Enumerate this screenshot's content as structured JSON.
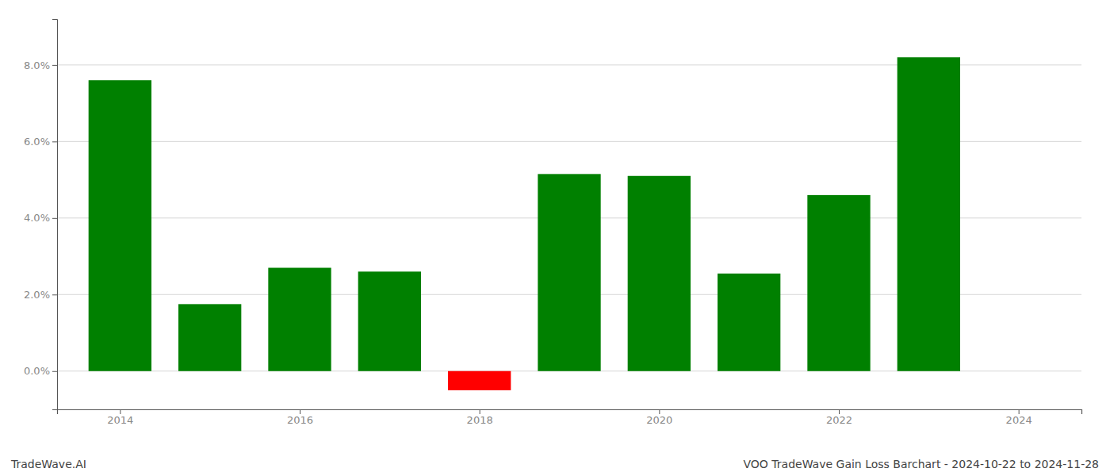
{
  "chart_data": {
    "type": "bar",
    "title": "VOO TradeWave Gain Loss Barchart - 2024-10-22 to 2024-11-28",
    "annotations": [
      "TradeWave.AI"
    ],
    "x": [
      2014,
      2015,
      2016,
      2017,
      2018,
      2019,
      2020,
      2021,
      2022,
      2023
    ],
    "values": [
      0.076,
      0.0175,
      0.027,
      0.026,
      -0.005,
      0.0515,
      0.051,
      0.0255,
      0.046,
      0.082
    ],
    "colors": [
      "#008000",
      "#008000",
      "#008000",
      "#008000",
      "#ff0000",
      "#008000",
      "#008000",
      "#008000",
      "#008000",
      "#008000"
    ],
    "xlim": [
      2013.3,
      2024.7
    ],
    "xticks": [
      2014,
      2016,
      2018,
      2020,
      2022,
      2024
    ],
    "ylim": [
      -0.01,
      0.092
    ],
    "yticks": [
      {
        "value": 0.0,
        "label": "0.0%"
      },
      {
        "value": 0.02,
        "label": "2.0%"
      },
      {
        "value": 0.04,
        "label": "4.0%"
      },
      {
        "value": 0.06,
        "label": "6.0%"
      },
      {
        "value": 0.08,
        "label": "8.0%"
      }
    ],
    "grid": true
  }
}
